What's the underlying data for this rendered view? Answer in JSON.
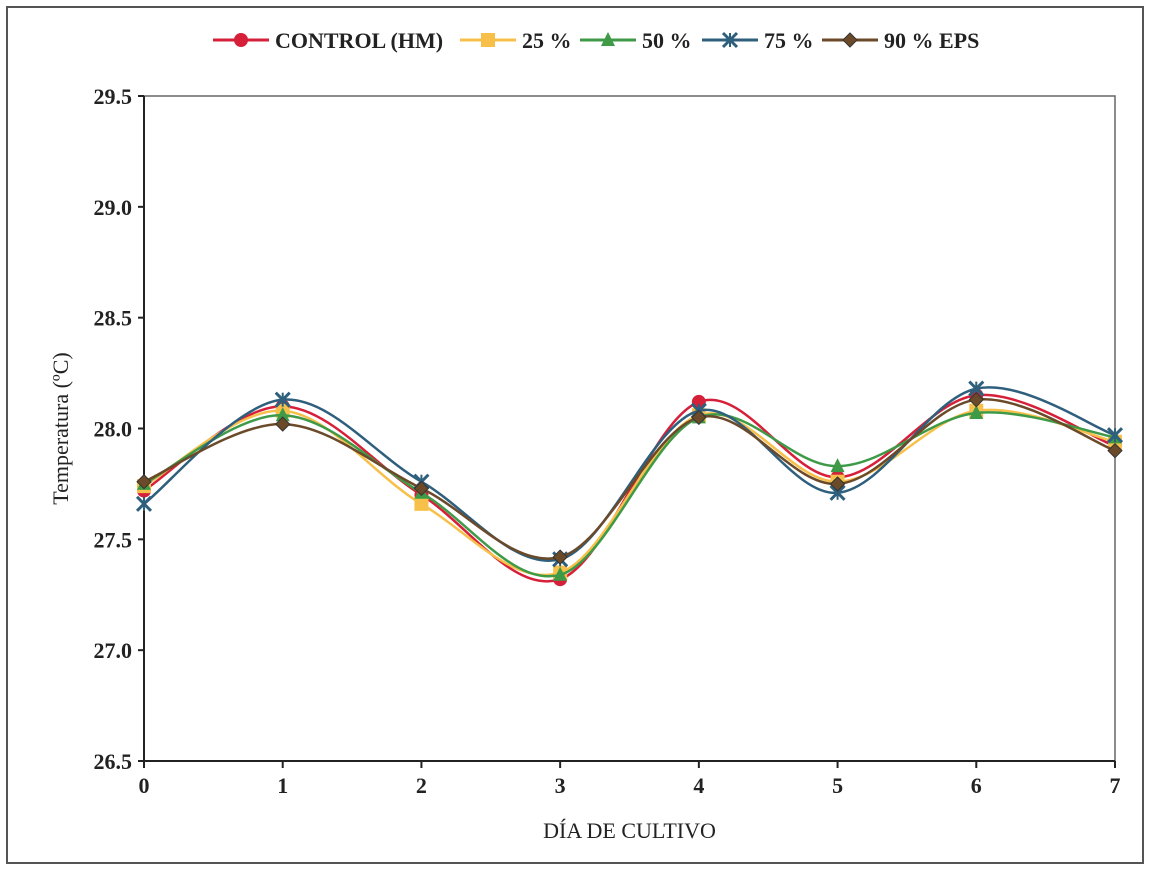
{
  "chart_data": {
    "type": "line",
    "xlabel": "DÍA DE CULTIVO",
    "ylabel": "Temperatura (ºC)",
    "x": [
      0,
      1,
      2,
      3,
      4,
      5,
      6,
      7
    ],
    "x_ticks": [
      "0",
      "1",
      "2",
      "3",
      "4",
      "5",
      "6",
      "7"
    ],
    "y_ticks": [
      "26.5",
      "27.0",
      "27.5",
      "28.0",
      "28.5",
      "29.0",
      "29.5"
    ],
    "xlim": [
      0,
      7
    ],
    "ylim": [
      26.5,
      29.5
    ],
    "grid": false,
    "legend_position": "top",
    "series": [
      {
        "name": "CONTROL (HM)",
        "color": "#d6203a",
        "marker": "circle",
        "values": [
          27.72,
          28.1,
          27.7,
          27.32,
          28.12,
          27.78,
          28.15,
          27.92
        ]
      },
      {
        "name": "25 %",
        "color": "#f7c04a",
        "marker": "square",
        "values": [
          27.74,
          28.08,
          27.66,
          27.35,
          28.06,
          27.76,
          28.08,
          27.94
        ]
      },
      {
        "name": "50 %",
        "color": "#3f9a48",
        "marker": "triangle",
        "values": [
          27.75,
          28.06,
          27.71,
          27.34,
          28.05,
          27.83,
          28.07,
          27.96
        ]
      },
      {
        "name": "75 %",
        "color": "#2e5f7c",
        "marker": "star",
        "values": [
          27.66,
          28.13,
          27.76,
          27.41,
          28.08,
          27.71,
          28.18,
          27.97
        ]
      },
      {
        "name": "90 % EPS",
        "color": "#6b4a2a",
        "marker": "diamond",
        "values": [
          27.76,
          28.02,
          27.73,
          27.42,
          28.05,
          27.75,
          28.13,
          27.9
        ]
      }
    ]
  }
}
